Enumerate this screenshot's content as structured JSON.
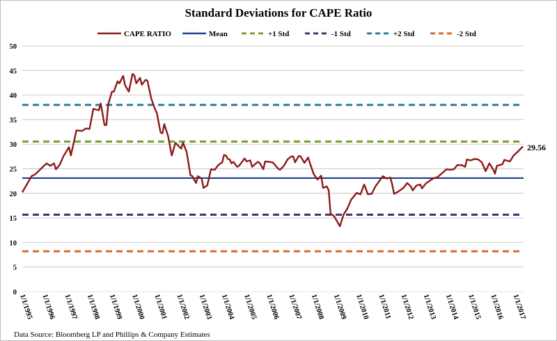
{
  "chart_data": {
    "type": "line",
    "title": "Standard Deviations for CAPE Ratio",
    "xlabel": "",
    "ylabel": "",
    "ylim": [
      0,
      50
    ],
    "yticks": [
      "0",
      "5",
      "10",
      "15",
      "20",
      "25",
      "30",
      "35",
      "40",
      "45",
      "50"
    ],
    "xticks": [
      "1/1/1995",
      "1/1/1996",
      "1/1/1997",
      "1/1/1998",
      "1/1/1999",
      "1/1/2000",
      "1/1/2001",
      "1/1/2002",
      "1/1/2003",
      "1/1/2004",
      "1/1/2005",
      "1/1/2006",
      "1/1/2007",
      "1/1/2008",
      "1/1/2009",
      "1/1/2010",
      "1/1/2011",
      "1/1/2012",
      "1/1/2013",
      "1/1/2014",
      "1/1/2015",
      "1/1/2016",
      "1/1/2017"
    ],
    "grid": "horizontal",
    "legend_position": "top",
    "last_value_label": "29.56",
    "source": "Data Source: Bloomberg LP and Phillips  & Company Estimates",
    "series": [
      {
        "name": "CAPE RATIO",
        "style": "solid",
        "color": "#8b1a1a",
        "x": [
          "1995-01",
          "1995-06",
          "1995-08",
          "1995-11",
          "1996-02",
          "1996-04",
          "1996-06",
          "1996-07",
          "1996-09",
          "1996-11",
          "1997-02",
          "1997-03",
          "1997-06",
          "1997-09",
          "1997-11",
          "1998-01",
          "1998-03",
          "1998-06",
          "1998-07",
          "1998-09",
          "1998-10",
          "1998-11",
          "1999-01",
          "1999-02",
          "1999-04",
          "1999-05",
          "1999-07",
          "1999-08",
          "1999-10",
          "1999-12",
          "2000-01",
          "2000-02",
          "2000-04",
          "2000-05",
          "2000-07",
          "2000-08",
          "2000-10",
          "2000-12",
          "2001-01",
          "2001-03",
          "2001-04",
          "2001-05",
          "2001-07",
          "2001-09",
          "2001-11",
          "2002-02",
          "2002-03",
          "2002-05",
          "2002-07",
          "2002-08",
          "2002-10",
          "2002-11",
          "2003-01",
          "2003-02",
          "2003-04",
          "2003-06",
          "2003-08",
          "2003-10",
          "2003-12",
          "2004-01",
          "2004-02",
          "2004-03",
          "2004-04",
          "2004-05",
          "2004-06",
          "2004-08",
          "2004-09",
          "2004-12",
          "2005-01",
          "2005-03",
          "2005-04",
          "2005-07",
          "2005-08",
          "2005-10",
          "2005-11",
          "2006-01",
          "2006-03",
          "2006-06",
          "2006-07",
          "2006-09",
          "2006-11",
          "2007-01",
          "2007-02",
          "2007-03",
          "2007-05",
          "2007-06",
          "2007-08",
          "2007-10",
          "2007-11",
          "2008-01",
          "2008-03",
          "2008-05",
          "2008-06",
          "2008-08",
          "2008-09",
          "2008-10",
          "2008-12",
          "2009-03",
          "2009-05",
          "2009-07",
          "2009-09",
          "2009-12",
          "2010-02",
          "2010-04",
          "2010-06",
          "2010-08",
          "2010-10",
          "2011-02",
          "2011-04",
          "2011-06",
          "2011-07",
          "2011-08",
          "2011-10",
          "2012-01",
          "2012-03",
          "2012-05",
          "2012-06",
          "2012-08",
          "2012-10",
          "2012-11",
          "2013-01",
          "2013-04",
          "2013-06",
          "2013-07",
          "2013-10",
          "2013-12",
          "2014-02",
          "2014-04",
          "2014-06",
          "2014-07",
          "2014-08",
          "2014-10",
          "2014-11",
          "2015-01",
          "2015-03",
          "2015-05",
          "2015-07",
          "2015-09",
          "2015-11",
          "2016-01",
          "2016-02",
          "2016-03",
          "2016-06",
          "2016-07",
          "2016-10",
          "2016-12",
          "2017-02",
          "2017-05"
        ],
        "y": [
          20.2,
          23.5,
          23.9,
          25.0,
          26.1,
          25.6,
          26.1,
          24.9,
          25.8,
          27.5,
          29.4,
          27.7,
          32.8,
          32.7,
          33.2,
          33.1,
          37.2,
          36.9,
          38.3,
          33.9,
          33.9,
          38.1,
          40.7,
          40.7,
          42.8,
          42.4,
          43.9,
          42.0,
          40.7,
          44.3,
          44.0,
          42.4,
          43.5,
          42.1,
          43.1,
          42.9,
          39.3,
          37.2,
          36.4,
          32.4,
          32.2,
          34.1,
          31.7,
          27.7,
          30.3,
          29.1,
          30.3,
          28.4,
          23.7,
          23.5,
          22.1,
          23.5,
          23.0,
          21.1,
          21.6,
          24.9,
          24.8,
          25.8,
          26.3,
          27.8,
          27.7,
          27.0,
          26.9,
          26.1,
          26.4,
          25.4,
          25.6,
          27.1,
          26.5,
          26.7,
          25.4,
          26.4,
          26.2,
          24.9,
          26.5,
          26.4,
          26.3,
          25.0,
          24.8,
          25.6,
          26.9,
          27.5,
          27.5,
          26.3,
          27.6,
          27.5,
          26.2,
          27.3,
          26.1,
          23.9,
          22.8,
          23.6,
          21.1,
          21.4,
          20.6,
          15.9,
          15.3,
          13.3,
          15.7,
          16.9,
          18.7,
          20.1,
          19.8,
          21.8,
          19.8,
          19.9,
          21.4,
          23.5,
          23.0,
          23.2,
          21.8,
          19.9,
          20.3,
          21.1,
          22.1,
          21.4,
          20.6,
          21.6,
          21.8,
          21.0,
          22.0,
          22.8,
          23.2,
          23.2,
          24.2,
          24.9,
          24.8,
          24.9,
          25.8,
          25.7,
          25.8,
          25.4,
          26.9,
          26.7,
          27.0,
          26.9,
          26.3,
          24.5,
          26.1,
          24.9,
          24.0,
          25.6,
          25.9,
          26.8,
          26.5,
          27.7,
          28.4,
          29.56
        ]
      },
      {
        "name": "Mean",
        "style": "solid",
        "color": "#1f3f8a",
        "value": 23.1
      },
      {
        "name": "+1 Std",
        "style": "dashed",
        "color": "#77a02a",
        "value": 30.55
      },
      {
        "name": "-1 Std",
        "style": "dashed",
        "color": "#47306e",
        "value": 15.65
      },
      {
        "name": "+2 Std",
        "style": "dashed",
        "color": "#2a7f98",
        "value": 38.0
      },
      {
        "name": "-2 Std",
        "style": "dashed",
        "color": "#d8692a",
        "value": 8.2
      }
    ]
  }
}
